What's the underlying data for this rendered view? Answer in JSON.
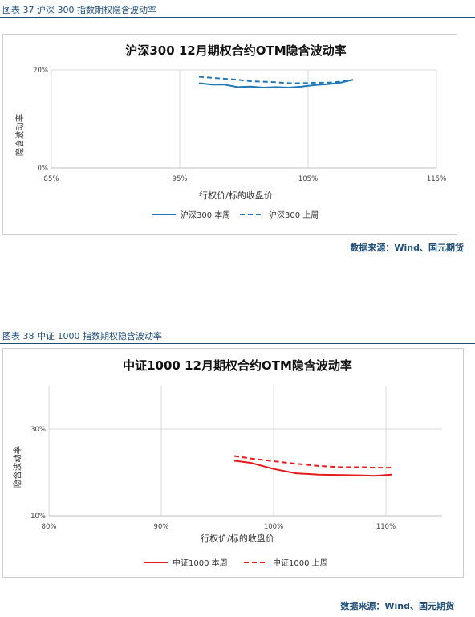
{
  "figures": [
    {
      "caption": "图表 37 沪深 300 指数期权隐含波动率",
      "source": "数据来源：Wind、国元期货",
      "chart_data": {
        "type": "line",
        "title": "沪深300 12月期权合约OTM隐含波动率",
        "xlabel": "行权价/标的收盘价",
        "ylabel": "隐含波动率",
        "xlim": [
          85,
          115
        ],
        "ylim": [
          0,
          20
        ],
        "xticks": [
          "85%",
          "95%",
          "105%",
          "115%"
        ],
        "yticks": [
          "0%",
          "20%"
        ],
        "x_tick_values": [
          85,
          95,
          105,
          115
        ],
        "y_tick_values": [
          0,
          20
        ],
        "grid": "vertical",
        "legend": "bottom",
        "series": [
          {
            "name": "沪深300 本周",
            "style": "solid",
            "color": "#1f77b4",
            "x": [
              96.5,
              97.5,
              98.5,
              99.5,
              100.5,
              101.5,
              102.5,
              103.5,
              104.5,
              105.5,
              106.5,
              107.5,
              108.5
            ],
            "y": [
              17.3,
              17.0,
              17.0,
              16.5,
              16.6,
              16.4,
              16.5,
              16.4,
              16.6,
              16.9,
              17.1,
              17.4,
              18.0
            ]
          },
          {
            "name": "沪深300 上周",
            "style": "dashed",
            "color": "#1f77b4",
            "x": [
              96.5,
              97.5,
              98.5,
              99.5,
              100.5,
              101.5,
              102.5,
              103.5,
              104.5,
              105.5,
              106.5,
              107.5,
              108.5
            ],
            "y": [
              18.6,
              18.4,
              18.2,
              18.0,
              17.7,
              17.6,
              17.5,
              17.3,
              17.3,
              17.4,
              17.4,
              17.6,
              18.0
            ]
          }
        ]
      }
    },
    {
      "caption": "图表 38 中证 1000 指数期权隐含波动率",
      "source": "数据来源：Wind、国元期货",
      "chart_data": {
        "type": "line",
        "title": "中证1000 12月期权合约OTM隐含波动率",
        "xlabel": "行权价/标的收盘价",
        "ylabel": "隐含波动率",
        "xlim": [
          80,
          115
        ],
        "ylim": [
          10,
          40
        ],
        "xticks": [
          "80%",
          "90%",
          "100%",
          "110%"
        ],
        "yticks": [
          "10%",
          "30%"
        ],
        "x_tick_values": [
          80,
          90,
          100,
          110
        ],
        "y_tick_values": [
          10,
          30
        ],
        "grid": "both",
        "legend": "bottom",
        "series": [
          {
            "name": "中证1000  本周",
            "style": "solid",
            "color": "#e41a1c",
            "x": [
              96.5,
              98,
              100,
              102,
              104,
              106,
              108,
              109,
              110.5
            ],
            "y": [
              22.7,
              22.2,
              20.8,
              19.8,
              19.5,
              19.4,
              19.3,
              19.2,
              19.5
            ]
          },
          {
            "name": "中证1000  上周",
            "style": "dashed",
            "color": "#e41a1c",
            "x": [
              96.5,
              98,
              100,
              102,
              104,
              106,
              108,
              109,
              110.5
            ],
            "y": [
              23.8,
              23.2,
              22.6,
              22.0,
              21.5,
              21.2,
              21.2,
              21.1,
              21.1
            ]
          }
        ]
      }
    }
  ]
}
